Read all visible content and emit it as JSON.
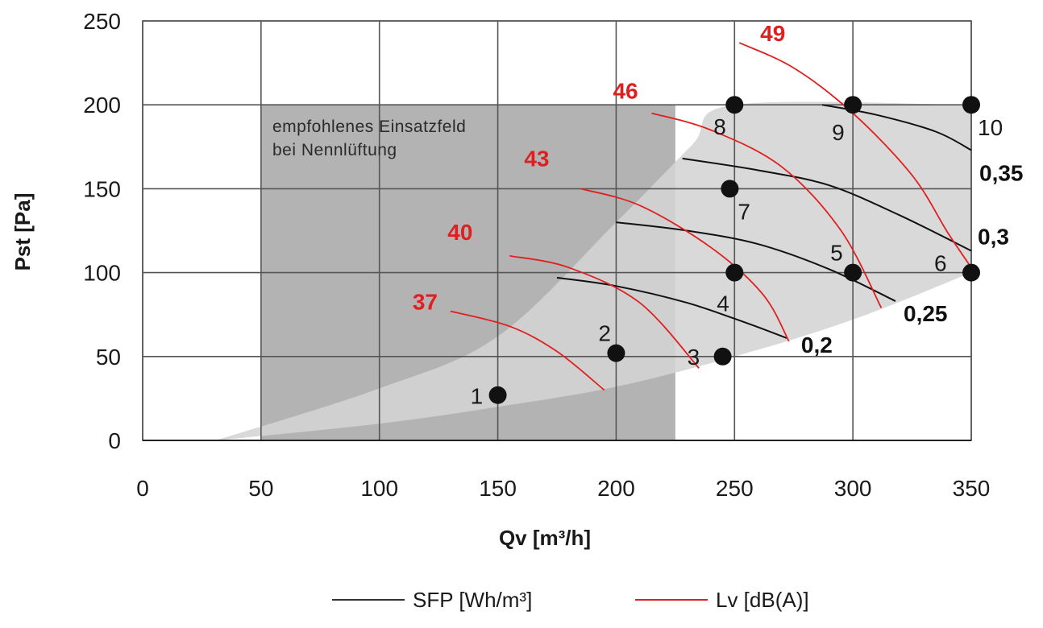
{
  "chart_data": {
    "type": "line",
    "xlabel": "Qv [m³/h]",
    "ylabel": "Pst [Pa]",
    "xlim": [
      0,
      350
    ],
    "ylim": [
      0,
      250
    ],
    "x_ticks": [
      0,
      50,
      100,
      150,
      200,
      250,
      300,
      350
    ],
    "y_ticks": [
      0,
      50,
      100,
      150,
      200,
      250
    ],
    "grid": true,
    "recommended_region": {
      "label": [
        "empfohlenes Einsatzfeld",
        "bei Nennlüftung"
      ],
      "x_range": [
        50,
        225
      ],
      "y_range": [
        0,
        200
      ],
      "color": "#b3b3b3"
    },
    "operating_envelope": {
      "color": "#d4d4d4",
      "upper_boundary": [
        [
          31,
          0
        ],
        [
          100,
          31
        ],
        [
          150,
          62
        ],
        [
          200,
          130
        ],
        [
          232,
          176
        ],
        [
          250,
          200
        ],
        [
          350,
          200
        ]
      ],
      "lower_boundary": [
        [
          31,
          0
        ],
        [
          100,
          10
        ],
        [
          150,
          20
        ],
        [
          200,
          32
        ],
        [
          250,
          50
        ],
        [
          300,
          72
        ],
        [
          350,
          100
        ]
      ]
    },
    "operating_points": [
      {
        "label": "1",
        "x": 150,
        "y": 27
      },
      {
        "label": "2",
        "x": 200,
        "y": 52
      },
      {
        "label": "3",
        "x": 245,
        "y": 50
      },
      {
        "label": "4",
        "x": 250,
        "y": 100
      },
      {
        "label": "5",
        "x": 300,
        "y": 100
      },
      {
        "label": "6",
        "x": 350,
        "y": 100
      },
      {
        "label": "7",
        "x": 248,
        "y": 150
      },
      {
        "label": "8",
        "x": 250,
        "y": 200
      },
      {
        "label": "9",
        "x": 300,
        "y": 200
      },
      {
        "label": "10",
        "x": 350,
        "y": 200
      }
    ],
    "series": [
      {
        "name": "SFP [Wh/m³]",
        "color": "#111111",
        "curves": [
          {
            "label": "0,2",
            "points": [
              [
                175,
                97
              ],
              [
                200,
                92
              ],
              [
                230,
                82
              ],
              [
                255,
                70
              ],
              [
                272,
                61
              ]
            ]
          },
          {
            "label": "0,25",
            "points": [
              [
                200,
                130
              ],
              [
                230,
                125
              ],
              [
                260,
                117
              ],
              [
                290,
                102
              ],
              [
                318,
                83
              ]
            ]
          },
          {
            "label": "0,3",
            "points": [
              [
                228,
                168
              ],
              [
                260,
                161
              ],
              [
                290,
                152
              ],
              [
                320,
                134
              ],
              [
                350,
                113
              ]
            ]
          },
          {
            "label": "0,35",
            "points": [
              [
                287,
                200
              ],
              [
                310,
                194
              ],
              [
                335,
                184
              ],
              [
                350,
                173
              ]
            ]
          }
        ]
      },
      {
        "name": "Lv [dB(A)]",
        "color": "#e02020",
        "curves": [
          {
            "label": "37",
            "points": [
              [
                130,
                77
              ],
              [
                155,
                68
              ],
              [
                175,
                53
              ],
              [
                195,
                30
              ]
            ]
          },
          {
            "label": "40",
            "points": [
              [
                155,
                110
              ],
              [
                180,
                103
              ],
              [
                210,
                82
              ],
              [
                235,
                43
              ]
            ]
          },
          {
            "label": "43",
            "points": [
              [
                185,
                150
              ],
              [
                210,
                140
              ],
              [
                240,
                115
              ],
              [
                262,
                87
              ],
              [
                273,
                59
              ]
            ]
          },
          {
            "label": "46",
            "points": [
              [
                215,
                195
              ],
              [
                240,
                185
              ],
              [
                270,
                163
              ],
              [
                295,
                125
              ],
              [
                312,
                79
              ]
            ]
          },
          {
            "label": "49",
            "points": [
              [
                252,
                237
              ],
              [
                275,
                222
              ],
              [
                300,
                195
              ],
              [
                325,
                158
              ],
              [
                340,
                124
              ],
              [
                350,
                103
              ]
            ]
          }
        ]
      }
    ],
    "legend": {
      "position": "bottom-center",
      "entries": [
        {
          "name": "SFP [Wh/m³]",
          "color": "#333333"
        },
        {
          "name": "Lv [dB(A)]",
          "color": "#e02020"
        }
      ]
    }
  }
}
